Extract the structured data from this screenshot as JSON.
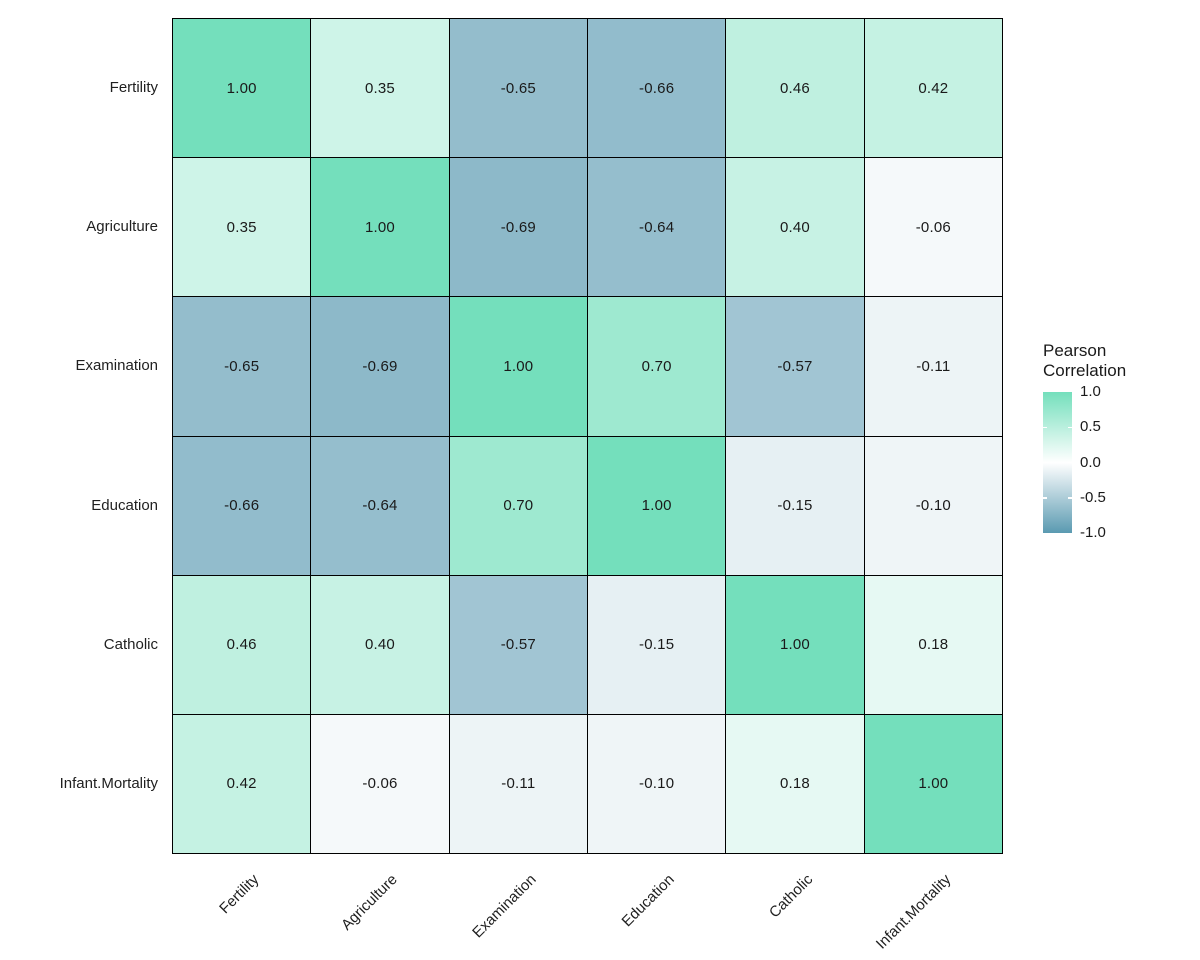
{
  "chart_data": {
    "type": "heatmap",
    "title": "",
    "variables": [
      "Fertility",
      "Agriculture",
      "Examination",
      "Education",
      "Catholic",
      "Infant.Mortality"
    ],
    "x_categories": [
      "Fertility",
      "Agriculture",
      "Examination",
      "Education",
      "Catholic",
      "Infant.Mortality"
    ],
    "y_categories": [
      "Fertility",
      "Agriculture",
      "Examination",
      "Education",
      "Catholic",
      "Infant.Mortality"
    ],
    "matrix": [
      [
        1.0,
        0.35,
        -0.65,
        -0.66,
        0.46,
        0.42
      ],
      [
        0.35,
        1.0,
        -0.69,
        -0.64,
        0.4,
        -0.06
      ],
      [
        -0.65,
        -0.69,
        1.0,
        0.7,
        -0.57,
        -0.11
      ],
      [
        -0.66,
        -0.64,
        0.7,
        1.0,
        -0.15,
        -0.1
      ],
      [
        0.46,
        0.4,
        -0.57,
        -0.15,
        1.0,
        0.18
      ],
      [
        0.42,
        -0.06,
        -0.11,
        -0.1,
        0.18,
        1.0
      ]
    ],
    "value_decimals": 2,
    "grid": "black cell borders, no background grid",
    "legend": {
      "position": "right",
      "title_line1": "Pearson",
      "title_line2": "Correlation",
      "ticks": [
        "1.0",
        "0.5",
        "0.0",
        "-0.5",
        "-1.0"
      ],
      "tick_values": [
        1.0,
        0.5,
        0.0,
        -0.5,
        -1.0
      ],
      "range": [
        -1.0,
        1.0
      ]
    },
    "colors": {
      "high": "#74DFBC",
      "mid": "#FFFFFF",
      "low": "#5A9AB1",
      "cell_border": "#000000",
      "value_text": "#1A1A1A",
      "axis_text": "#1F1F1F",
      "background": "#FFFFFF"
    }
  }
}
